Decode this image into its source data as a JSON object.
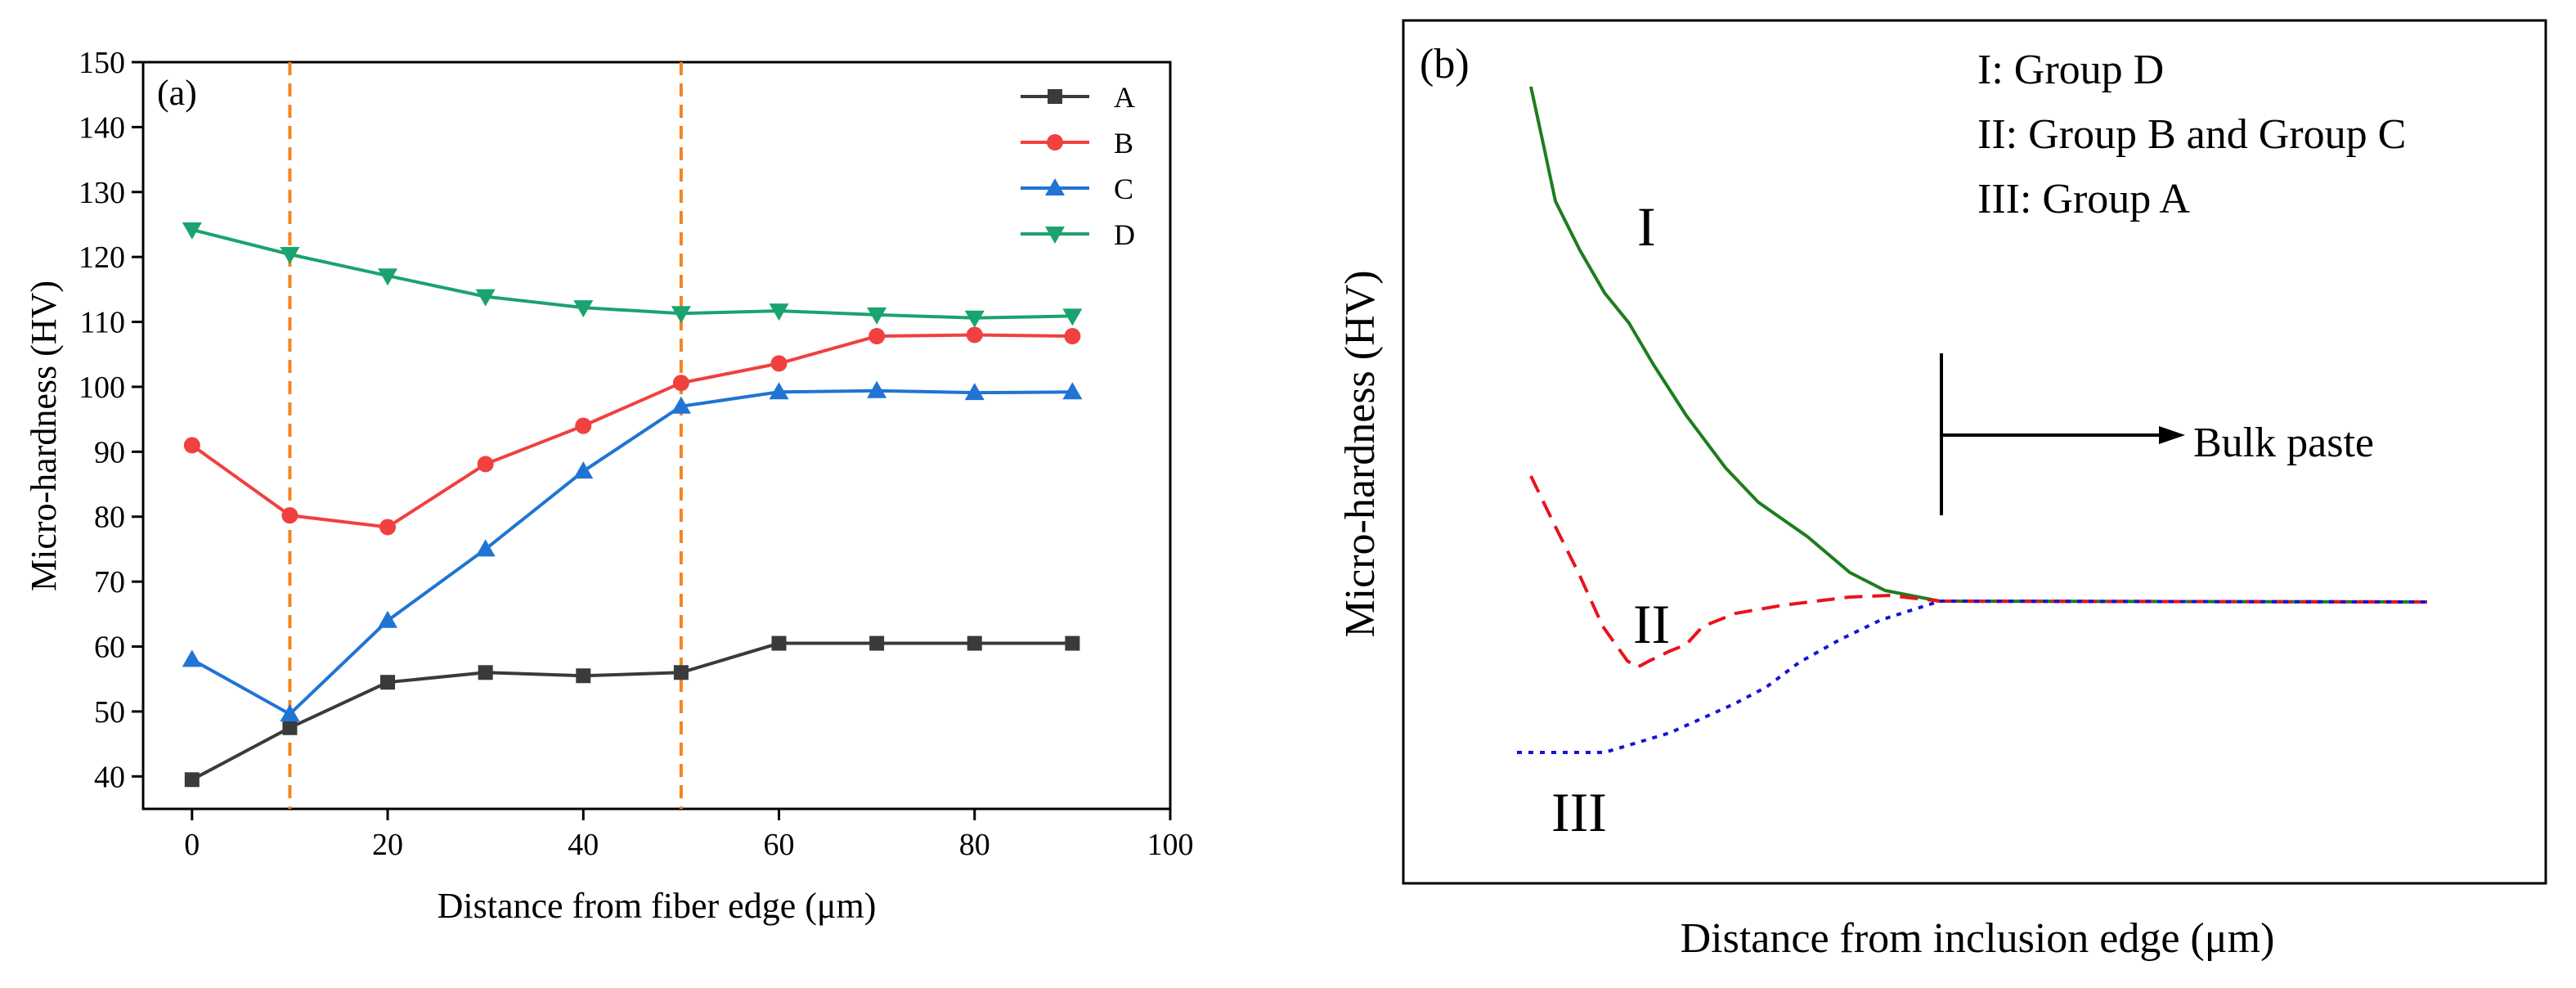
{
  "chart_data": [
    {
      "type": "line",
      "panel_label": "(a)",
      "xlabel": "Distance from fiber edge (μm)",
      "ylabel": "Micro-hardness (HV)",
      "xlim": [
        -5,
        100
      ],
      "ylim": [
        35,
        150
      ],
      "x_ticks": [
        0,
        20,
        40,
        60,
        80,
        100
      ],
      "y_ticks": [
        40,
        50,
        60,
        70,
        80,
        90,
        100,
        110,
        120,
        130,
        140,
        150
      ],
      "x": [
        0,
        10,
        20,
        30,
        40,
        50,
        60,
        70,
        80,
        90
      ],
      "series": [
        {
          "name": "A",
          "marker": "square",
          "color": "#3a3a3a",
          "values": [
            39.5,
            47.5,
            54.5,
            56,
            55.5,
            56,
            60.5,
            60.5,
            60.5,
            60.5
          ]
        },
        {
          "name": "B",
          "marker": "circle",
          "color": "#f0403f",
          "values": [
            91,
            80.2,
            78.4,
            88.1,
            94,
            100.6,
            103.6,
            107.8,
            108,
            107.8
          ]
        },
        {
          "name": "C",
          "marker": "triangle-up",
          "color": "#1f74d4",
          "values": [
            58,
            49.6,
            64,
            75,
            87,
            97,
            99.2,
            99.4,
            99.1,
            99.2
          ]
        },
        {
          "name": "D",
          "marker": "triangle-down",
          "color": "#1aa36f",
          "values": [
            124.2,
            120.4,
            117.1,
            113.9,
            112.2,
            111.3,
            111.7,
            111.1,
            110.6,
            110.9
          ]
        }
      ],
      "vlines": [
        {
          "x": 10,
          "color": "#f5841f"
        },
        {
          "x": 50,
          "color": "#f5841f"
        }
      ],
      "legend_position": "top-right"
    },
    {
      "type": "line",
      "panel_label": "(b)",
      "xlabel": "Distance from inclusion edge (μm)",
      "ylabel": "Micro-hardness (HV)",
      "note": "schematic, no numeric axes",
      "curves": [
        {
          "roman": "I",
          "color": "#1e7d1e"
        },
        {
          "roman": "II",
          "color": "#e8141b"
        },
        {
          "roman": "III",
          "color": "#1414d6"
        }
      ],
      "legend_lines": [
        "I:  Group D",
        "II:  Group B and Group C",
        "III: Group A"
      ],
      "annotation": "Bulk paste"
    }
  ]
}
